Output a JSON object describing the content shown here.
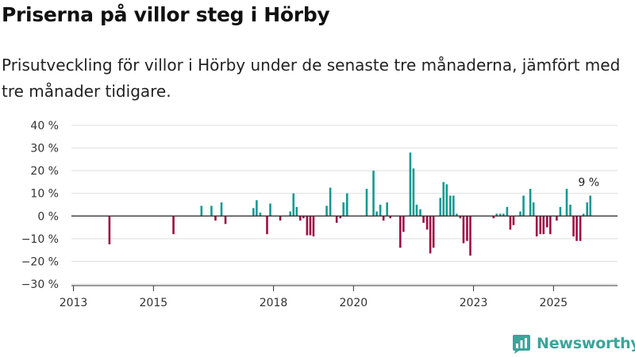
{
  "header": {
    "title": "Priserna på villor steg i Hörby",
    "subtitle": "Prisutveckling för villor i Hörby under de senaste tre månaderna, jämfört med tre månader tidigare."
  },
  "brand": {
    "name": "Newsworthy",
    "logo_icon": "newsworthy-logo-icon"
  },
  "colors": {
    "positive": "#129a92",
    "negative": "#9c0e46",
    "grid": "#dddddd",
    "zero_line": "#222222",
    "brand": "#3aa59a"
  },
  "chart_data": {
    "type": "bar",
    "title": "Priserna på villor steg i Hörby",
    "subtitle": "Prisutveckling för villor i Hörby under de senaste tre månaderna, jämfört med tre månader tidigare.",
    "xlabel": "",
    "ylabel": "",
    "grid": true,
    "x_range": [
      2012.95,
      2026.6
    ],
    "ylim": [
      -30,
      40
    ],
    "y_ticks": [
      {
        "value": 40,
        "label": "40 %"
      },
      {
        "value": 30,
        "label": "30 %"
      },
      {
        "value": 20,
        "label": "20 %"
      },
      {
        "value": 10,
        "label": "10 %"
      },
      {
        "value": 0,
        "label": "0 %"
      },
      {
        "value": -10,
        "label": "−10 %"
      },
      {
        "value": -20,
        "label": "−20 %"
      },
      {
        "value": -30,
        "label": "−30 %"
      }
    ],
    "x_ticks": [
      {
        "value": 2013.0,
        "label": "2013"
      },
      {
        "value": 2015.0,
        "label": "2015"
      },
      {
        "value": 2018.0,
        "label": "2018"
      },
      {
        "value": 2020.0,
        "label": "2020"
      },
      {
        "value": 2023.0,
        "label": "2023"
      },
      {
        "value": 2025.0,
        "label": "2025"
      }
    ],
    "series": [
      {
        "name": "Prisutveckling",
        "points": [
          {
            "x": 2013.9,
            "y": -12.5
          },
          {
            "x": 2015.5,
            "y": -8
          },
          {
            "x": 2016.2,
            "y": 4.5
          },
          {
            "x": 2016.45,
            "y": 4.5
          },
          {
            "x": 2016.55,
            "y": -2
          },
          {
            "x": 2016.7,
            "y": 6
          },
          {
            "x": 2016.8,
            "y": -3.5
          },
          {
            "x": 2017.5,
            "y": 3.5
          },
          {
            "x": 2017.58,
            "y": 7
          },
          {
            "x": 2017.67,
            "y": 1.5
          },
          {
            "x": 2017.84,
            "y": -8
          },
          {
            "x": 2017.92,
            "y": 5.5
          },
          {
            "x": 2018.17,
            "y": -2
          },
          {
            "x": 2018.42,
            "y": 2
          },
          {
            "x": 2018.5,
            "y": 10
          },
          {
            "x": 2018.58,
            "y": 4
          },
          {
            "x": 2018.67,
            "y": -2
          },
          {
            "x": 2018.75,
            "y": -1
          },
          {
            "x": 2018.84,
            "y": -8.5
          },
          {
            "x": 2018.92,
            "y": -8.5
          },
          {
            "x": 2019.0,
            "y": -9
          },
          {
            "x": 2019.33,
            "y": 4.5
          },
          {
            "x": 2019.42,
            "y": 12.5
          },
          {
            "x": 2019.58,
            "y": -3
          },
          {
            "x": 2019.67,
            "y": -1
          },
          {
            "x": 2019.75,
            "y": 6
          },
          {
            "x": 2019.84,
            "y": 10
          },
          {
            "x": 2020.33,
            "y": 12
          },
          {
            "x": 2020.5,
            "y": 20
          },
          {
            "x": 2020.58,
            "y": 2
          },
          {
            "x": 2020.67,
            "y": 5
          },
          {
            "x": 2020.75,
            "y": -2
          },
          {
            "x": 2020.84,
            "y": 6
          },
          {
            "x": 2020.92,
            "y": -1
          },
          {
            "x": 2021.17,
            "y": -14
          },
          {
            "x": 2021.25,
            "y": -7
          },
          {
            "x": 2021.42,
            "y": 28
          },
          {
            "x": 2021.5,
            "y": 21
          },
          {
            "x": 2021.58,
            "y": 5
          },
          {
            "x": 2021.67,
            "y": 3
          },
          {
            "x": 2021.75,
            "y": -3
          },
          {
            "x": 2021.84,
            "y": -6
          },
          {
            "x": 2021.92,
            "y": -16.5
          },
          {
            "x": 2022.0,
            "y": -14
          },
          {
            "x": 2022.17,
            "y": 8
          },
          {
            "x": 2022.25,
            "y": 15
          },
          {
            "x": 2022.33,
            "y": 14
          },
          {
            "x": 2022.42,
            "y": 9
          },
          {
            "x": 2022.5,
            "y": 9
          },
          {
            "x": 2022.58,
            "y": 1
          },
          {
            "x": 2022.67,
            "y": -1
          },
          {
            "x": 2022.75,
            "y": -12
          },
          {
            "x": 2022.84,
            "y": -11
          },
          {
            "x": 2022.92,
            "y": -17.5
          },
          {
            "x": 2023.5,
            "y": -1
          },
          {
            "x": 2023.58,
            "y": 1
          },
          {
            "x": 2023.67,
            "y": 1
          },
          {
            "x": 2023.75,
            "y": 1
          },
          {
            "x": 2023.84,
            "y": 4
          },
          {
            "x": 2023.92,
            "y": -6
          },
          {
            "x": 2024.0,
            "y": -4
          },
          {
            "x": 2024.17,
            "y": 2
          },
          {
            "x": 2024.25,
            "y": 9
          },
          {
            "x": 2024.42,
            "y": 12
          },
          {
            "x": 2024.5,
            "y": 6
          },
          {
            "x": 2024.58,
            "y": -9
          },
          {
            "x": 2024.67,
            "y": -8
          },
          {
            "x": 2024.75,
            "y": -8
          },
          {
            "x": 2024.84,
            "y": -5
          },
          {
            "x": 2024.92,
            "y": -8
          },
          {
            "x": 2025.08,
            "y": -2
          },
          {
            "x": 2025.17,
            "y": 4
          },
          {
            "x": 2025.33,
            "y": 12
          },
          {
            "x": 2025.42,
            "y": 5
          },
          {
            "x": 2025.5,
            "y": -9
          },
          {
            "x": 2025.58,
            "y": -11
          },
          {
            "x": 2025.67,
            "y": -11
          },
          {
            "x": 2025.75,
            "y": 1
          },
          {
            "x": 2025.84,
            "y": 6
          },
          {
            "x": 2025.92,
            "y": 9
          }
        ]
      }
    ],
    "annotations": [
      {
        "x": 2025.92,
        "y": 9,
        "text": "9 %"
      }
    ]
  }
}
